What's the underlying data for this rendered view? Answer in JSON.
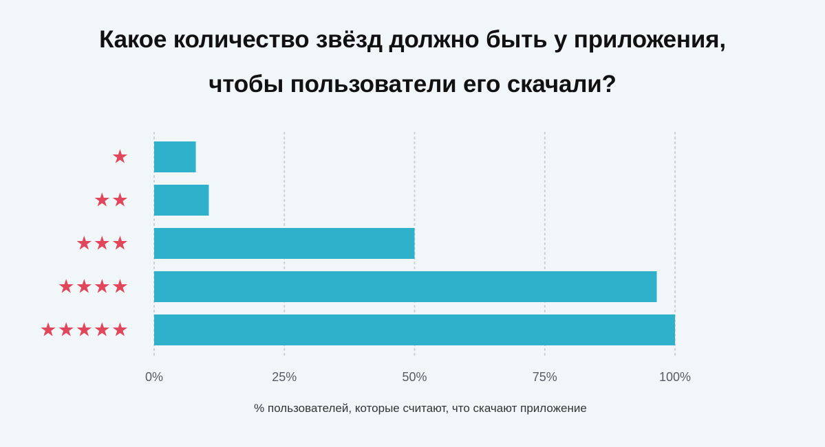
{
  "chart_data": {
    "type": "bar",
    "orientation": "horizontal",
    "title": [
      "Какое количество звёзд должно быть у приложения,",
      "чтобы пользователи его скачали?"
    ],
    "categories": [
      "★",
      "★★",
      "★★★",
      "★★★★",
      "★★★★★"
    ],
    "values": [
      8,
      10.5,
      50,
      96.5,
      100
    ],
    "xlabel": "% пользователей, которые считают, что скачают приложение",
    "ylabel": "",
    "xlim": [
      0,
      100
    ],
    "x_ticks": [
      "0%",
      "25%",
      "50%",
      "75%",
      "100%"
    ],
    "grid": "vertical-dotted",
    "legend": "none"
  },
  "colors": {
    "background": "#f1f7f9",
    "bar": "#2fb0cb",
    "star": "#e0475a",
    "grid": "#c9ced3",
    "text": "#111111"
  }
}
